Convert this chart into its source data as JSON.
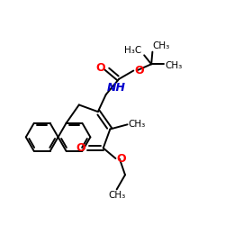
{
  "bg_color": "#ffffff",
  "line_color": "#000000",
  "o_color": "#ff0000",
  "n_color": "#0000cd",
  "line_width": 1.4,
  "font_size": 8,
  "fig_size": [
    2.5,
    2.5
  ],
  "dpi": 100,
  "xlim": [
    0,
    10
  ],
  "ylim": [
    0,
    10
  ]
}
